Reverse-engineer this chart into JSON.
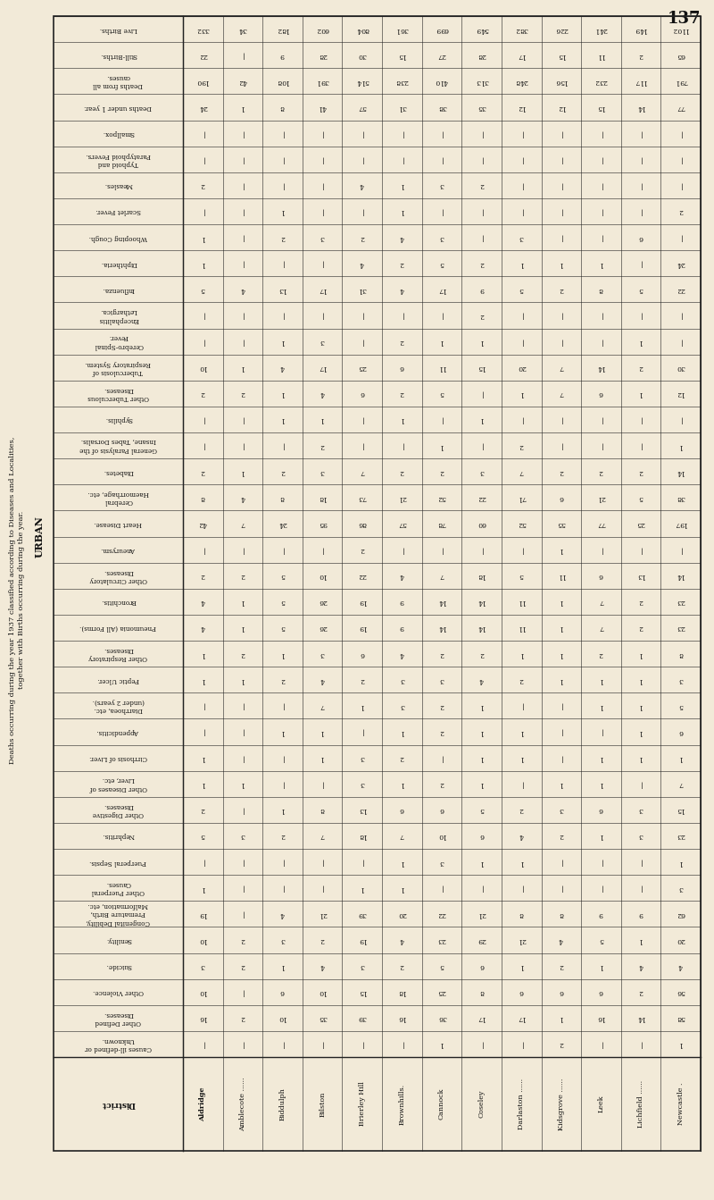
{
  "page_number": "137",
  "title_left": "Deaths occurring during the year 1937 classified according to Diseases and Localities,\ntogether with Births occurring during the year.",
  "section_label": "URBAN",
  "districts": [
    "Aldridge",
    "Amblecote ......",
    "Biddulph",
    "Bilston",
    "Brierley Hill",
    "Brownhills.",
    "Cannock",
    "Coseley",
    "Darlaston ......",
    "Kidsgrove ......",
    "Leek",
    "Lichfield ......",
    "Newcastle ."
  ],
  "row_headers": [
    "Live Births.",
    "Still-Births.",
    "Deaths from all\ncauses.",
    "Deaths under 1 year.",
    "Smallpox.",
    "Typhoid and\nParatyphoid Fevers.",
    "Measles.",
    "Scarlet Fever.",
    "Whooping Cough.",
    "Diphtheria.",
    "Influenza.",
    "Encephalitis\nLethargica.",
    "Cerebro-Spinal\nFever.",
    "Tuberculosis of\nRespiratory System.",
    "Other Tuberculous\nDiseases.",
    "Syphilis.",
    "General Paralysis of the\nInsane, Tabes Dorsalis.",
    "Diabetes.",
    "Cerebral\nHaemorrhage, etc.",
    "Heart Disease.",
    "Aneurysm.",
    "Other Circulatory\nDiseases.",
    "Bronchitis.",
    "Pneumonia (All Forms).",
    "Other Respiratory\nDiseases.",
    "Peptic Ulcer.",
    "Diarrhoea, etc.\n(under 2 years).",
    "Appendicitis.",
    "Cirrhosis of Liver.",
    "Other Diseases of\nLiver, etc.",
    "Other Digestive\nDiseases.",
    "Nephritis.",
    "Puerperal Sepsis.",
    "Other Puerperal\nCauses.",
    "Congenital Debility,\nPremature Birth,\nMalformation, etc.",
    "Senility.",
    "Suicide.",
    "Other Violence.",
    "Other Defined\nDiseases.",
    "Causes ill-defined or\nUnknown."
  ],
  "data": [
    [
      332,
      34,
      182,
      602,
      804,
      361,
      699,
      549,
      382,
      226,
      241,
      149,
      1102
    ],
    [
      22,
      0,
      9,
      28,
      30,
      15,
      27,
      28,
      17,
      15,
      11,
      2,
      65
    ],
    [
      190,
      42,
      108,
      391,
      514,
      238,
      410,
      313,
      248,
      156,
      232,
      117,
      791
    ],
    [
      24,
      1,
      8,
      41,
      57,
      31,
      38,
      35,
      12,
      12,
      15,
      14,
      77
    ],
    [
      0,
      0,
      0,
      0,
      0,
      0,
      0,
      0,
      0,
      0,
      0,
      0,
      0
    ],
    [
      0,
      0,
      0,
      0,
      0,
      0,
      0,
      0,
      0,
      0,
      0,
      0,
      0
    ],
    [
      2,
      0,
      0,
      0,
      4,
      1,
      3,
      2,
      0,
      0,
      0,
      0,
      0
    ],
    [
      0,
      0,
      1,
      0,
      0,
      1,
      0,
      0,
      0,
      0,
      0,
      0,
      2
    ],
    [
      1,
      0,
      2,
      3,
      2,
      4,
      3,
      0,
      3,
      0,
      0,
      6,
      0
    ],
    [
      1,
      0,
      0,
      0,
      4,
      2,
      5,
      2,
      1,
      1,
      1,
      0,
      24
    ],
    [
      5,
      4,
      13,
      17,
      31,
      4,
      17,
      9,
      5,
      2,
      8,
      5,
      22
    ],
    [
      0,
      0,
      0,
      0,
      0,
      0,
      0,
      2,
      0,
      0,
      0,
      0,
      0
    ],
    [
      0,
      0,
      1,
      3,
      0,
      2,
      1,
      1,
      0,
      0,
      0,
      1,
      0
    ],
    [
      10,
      1,
      4,
      17,
      25,
      6,
      11,
      15,
      20,
      7,
      14,
      2,
      30
    ],
    [
      2,
      2,
      1,
      4,
      6,
      2,
      5,
      0,
      1,
      7,
      6,
      1,
      12
    ],
    [
      0,
      0,
      1,
      1,
      0,
      1,
      0,
      1,
      0,
      0,
      0,
      0,
      0
    ],
    [
      0,
      0,
      0,
      2,
      0,
      0,
      1,
      0,
      2,
      0,
      0,
      0,
      1
    ],
    [
      2,
      1,
      2,
      3,
      7,
      2,
      2,
      3,
      7,
      2,
      2,
      2,
      14
    ],
    [
      8,
      4,
      8,
      18,
      73,
      21,
      52,
      22,
      71,
      6,
      21,
      5,
      38
    ],
    [
      42,
      7,
      24,
      95,
      86,
      57,
      78,
      60,
      52,
      55,
      77,
      25,
      197
    ],
    [
      0,
      0,
      0,
      0,
      2,
      0,
      0,
      0,
      0,
      1,
      0,
      0,
      0
    ],
    [
      2,
      2,
      5,
      10,
      22,
      4,
      7,
      18,
      5,
      11,
      6,
      13,
      14
    ],
    [
      4,
      1,
      5,
      26,
      19,
      9,
      14,
      14,
      11,
      1,
      7,
      2,
      23
    ],
    [
      4,
      1,
      5,
      26,
      19,
      9,
      14,
      14,
      11,
      1,
      7,
      2,
      23
    ],
    [
      1,
      2,
      1,
      3,
      6,
      4,
      2,
      2,
      1,
      1,
      2,
      1,
      8
    ],
    [
      1,
      1,
      2,
      4,
      2,
      3,
      3,
      4,
      2,
      1,
      1,
      1,
      3
    ],
    [
      0,
      0,
      0,
      7,
      1,
      3,
      2,
      1,
      0,
      0,
      1,
      1,
      5
    ],
    [
      0,
      0,
      1,
      1,
      0,
      1,
      2,
      1,
      1,
      0,
      0,
      1,
      6
    ],
    [
      1,
      0,
      0,
      1,
      3,
      2,
      0,
      1,
      1,
      0,
      1,
      1,
      1
    ],
    [
      1,
      1,
      0,
      0,
      3,
      1,
      2,
      1,
      0,
      1,
      1,
      0,
      7
    ],
    [
      2,
      0,
      1,
      8,
      13,
      6,
      6,
      5,
      2,
      3,
      6,
      3,
      15
    ],
    [
      5,
      3,
      2,
      7,
      18,
      7,
      10,
      6,
      4,
      2,
      1,
      3,
      23
    ],
    [
      0,
      0,
      0,
      0,
      0,
      1,
      3,
      1,
      1,
      0,
      0,
      0,
      1
    ],
    [
      1,
      0,
      0,
      0,
      1,
      1,
      0,
      0,
      0,
      0,
      0,
      0,
      3
    ],
    [
      19,
      0,
      4,
      21,
      39,
      20,
      22,
      21,
      8,
      8,
      9,
      9,
      62
    ],
    [
      10,
      2,
      3,
      2,
      19,
      4,
      23,
      29,
      21,
      4,
      5,
      1,
      20
    ],
    [
      3,
      2,
      1,
      4,
      3,
      2,
      5,
      6,
      1,
      2,
      1,
      4,
      4
    ],
    [
      10,
      0,
      6,
      10,
      15,
      18,
      25,
      8,
      6,
      6,
      6,
      2,
      56
    ],
    [
      16,
      2,
      10,
      35,
      39,
      16,
      36,
      17,
      17,
      1,
      16,
      14,
      58
    ],
    [
      0,
      0,
      0,
      0,
      0,
      0,
      1,
      0,
      0,
      2,
      0,
      0,
      1
    ]
  ],
  "bg_color": "#f2ead8",
  "line_color": "#222222",
  "text_color": "#111111",
  "header_bg": "#e8dfc8"
}
